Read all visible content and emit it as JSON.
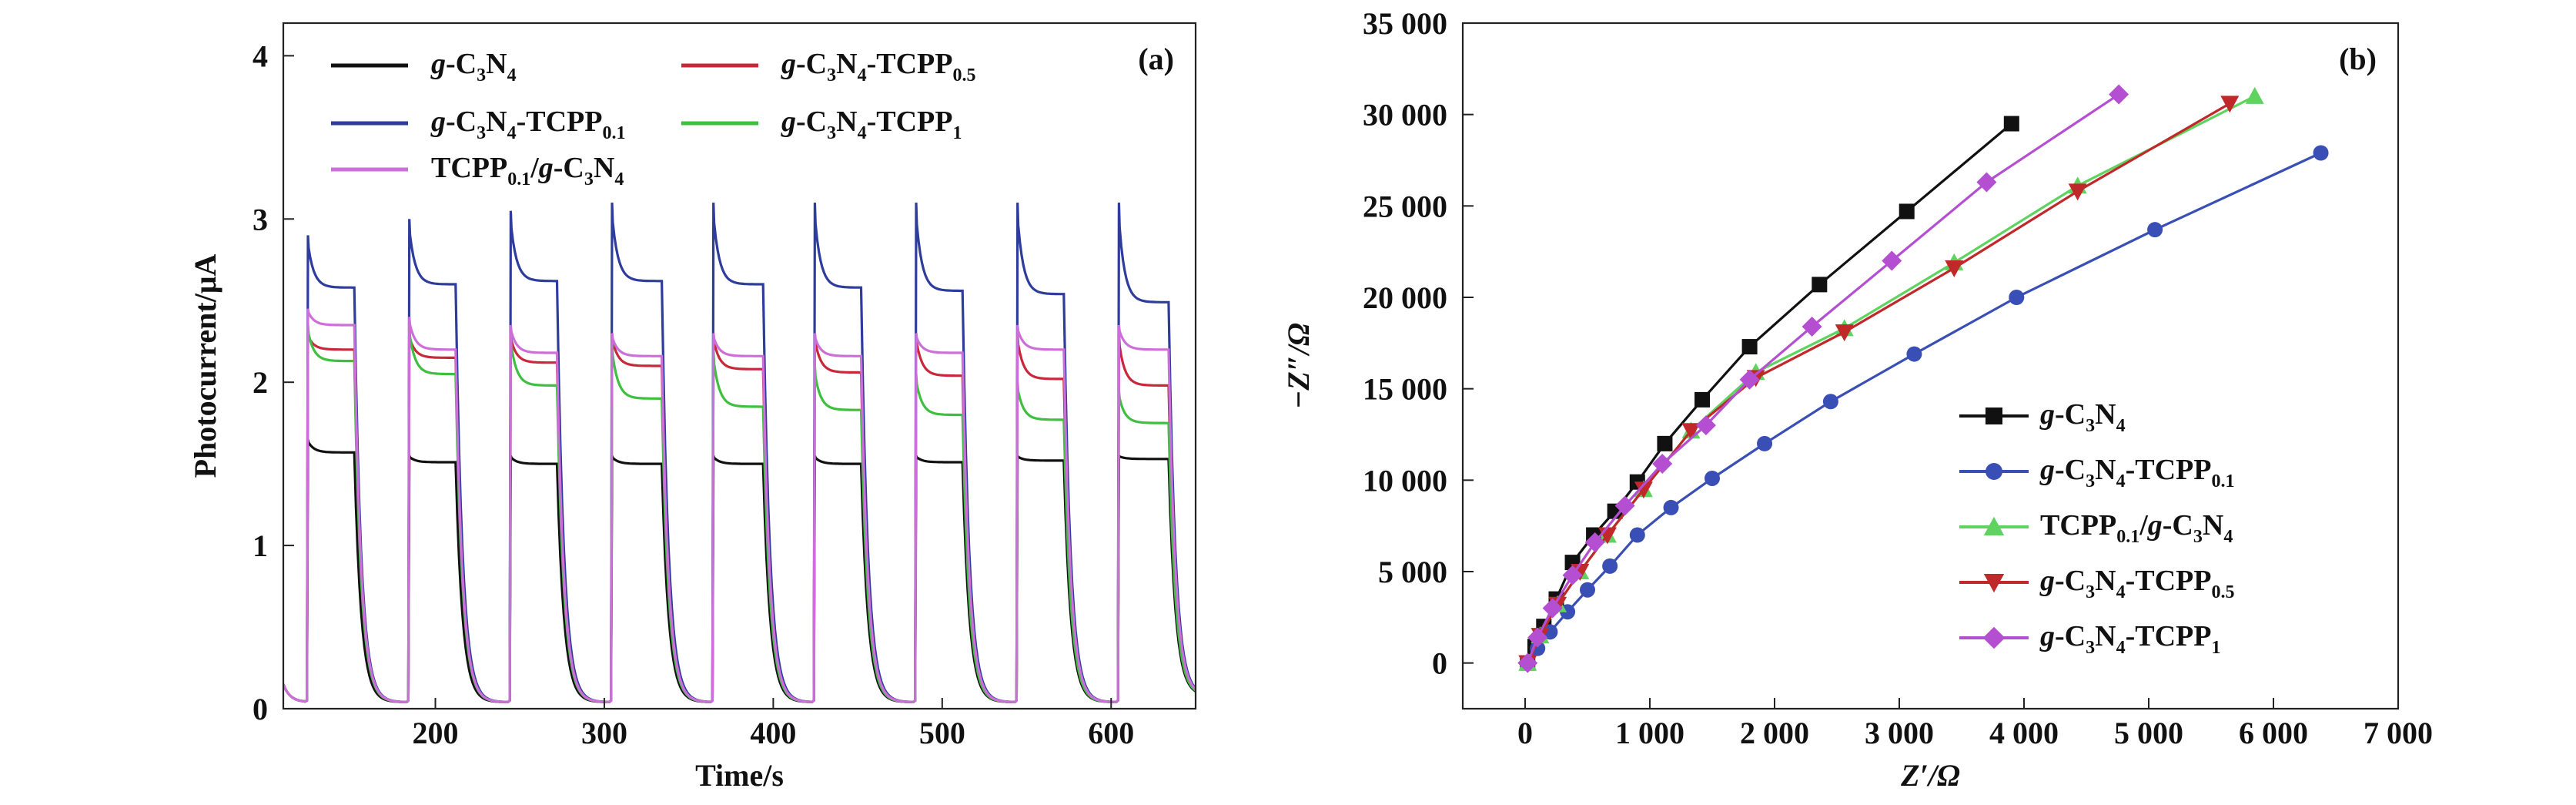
{
  "chart_data": [
    {
      "type": "line",
      "panel_label": "(a)",
      "xlabel": "Time/s",
      "ylabel": "Photocurrent/μA",
      "xlim": [
        110,
        650
      ],
      "ylim": [
        0,
        4.2
      ],
      "xticks": [
        200,
        300,
        400,
        500,
        600
      ],
      "yticks": [
        0,
        1,
        2,
        3,
        4
      ],
      "xtick_labels": [
        "200",
        "300",
        "400",
        "500",
        "600"
      ],
      "ytick_labels": [
        "0",
        "1",
        "2",
        "3",
        "4"
      ],
      "legend": "top-left, two columns",
      "light_on_times": [
        124,
        184,
        244,
        304,
        364,
        424,
        484,
        544,
        604
      ],
      "light_off_times": [
        152,
        212,
        272,
        334,
        394,
        452,
        512,
        572,
        634
      ],
      "series": [
        {
          "name": "g-C3N4",
          "label_parts": [
            [
              "g",
              "i"
            ],
            [
              "-C",
              ""
            ],
            [
              "3",
              "s"
            ],
            [
              "N",
              ""
            ],
            [
              "4",
              "s"
            ]
          ],
          "color": "#111111",
          "peak": [
            1.65,
            1.55,
            1.55,
            1.55,
            1.55,
            1.55,
            1.55,
            1.55,
            1.55
          ],
          "steady": [
            1.57,
            1.51,
            1.5,
            1.5,
            1.5,
            1.5,
            1.51,
            1.52,
            1.53
          ]
        },
        {
          "name": "g-C3N4-TCPP0.5",
          "label_parts": [
            [
              "g",
              "i"
            ],
            [
              "-C",
              ""
            ],
            [
              "3",
              "s"
            ],
            [
              "N",
              ""
            ],
            [
              "4",
              "s"
            ],
            [
              "-TCPP",
              ""
            ],
            [
              "0.5",
              "s"
            ]
          ],
          "color": "#c8283a",
          "peak": [
            2.3,
            2.3,
            2.3,
            2.3,
            2.3,
            2.3,
            2.3,
            2.3,
            2.3
          ],
          "steady": [
            2.2,
            2.15,
            2.12,
            2.1,
            2.08,
            2.06,
            2.04,
            2.02,
            1.98
          ]
        },
        {
          "name": "g-C3N4-TCPP0.1",
          "label_parts": [
            [
              "g",
              "i"
            ],
            [
              "-C",
              ""
            ],
            [
              "3",
              "s"
            ],
            [
              "N",
              ""
            ],
            [
              "4",
              "s"
            ],
            [
              "-TCPP",
              ""
            ],
            [
              "0.1",
              "s"
            ]
          ],
          "color": "#2e3d9b",
          "peak": [
            2.9,
            3.0,
            3.05,
            3.1,
            3.1,
            3.1,
            3.1,
            3.1,
            3.1
          ],
          "steady": [
            2.58,
            2.6,
            2.62,
            2.62,
            2.6,
            2.58,
            2.56,
            2.54,
            2.49
          ]
        },
        {
          "name": "g-C3N4-TCPP1",
          "label_parts": [
            [
              "g",
              "i"
            ],
            [
              "-C",
              ""
            ],
            [
              "3",
              "s"
            ],
            [
              "N",
              ""
            ],
            [
              "4",
              "s"
            ],
            [
              "-TCPP",
              ""
            ],
            [
              "1",
              "s"
            ]
          ],
          "color": "#3fbf3f",
          "peak": [
            2.35,
            2.35,
            2.3,
            2.25,
            2.2,
            2.1,
            2.05,
            2.0,
            1.95
          ],
          "steady": [
            2.13,
            2.05,
            1.98,
            1.9,
            1.85,
            1.83,
            1.8,
            1.77,
            1.75
          ]
        },
        {
          "name": "TCPP0.1/g-C3N4",
          "label_parts": [
            [
              "TCPP",
              ""
            ],
            [
              "0.1",
              "s"
            ],
            [
              "/",
              ""
            ],
            [
              "g",
              "i"
            ],
            [
              "-C",
              ""
            ],
            [
              "3",
              "s"
            ],
            [
              "N",
              ""
            ],
            [
              "4",
              "s"
            ]
          ],
          "color": "#cc6fd8",
          "peak": [
            2.45,
            2.4,
            2.35,
            2.3,
            2.3,
            2.3,
            2.3,
            2.35,
            2.35
          ],
          "steady": [
            2.35,
            2.2,
            2.18,
            2.16,
            2.16,
            2.16,
            2.18,
            2.2,
            2.2
          ]
        }
      ]
    },
    {
      "type": "line",
      "panel_label": "(b)",
      "xlabel": "Z′/Ω",
      "ylabel": "−Z″/Ω",
      "xlim": [
        -500,
        7000
      ],
      "ylim": [
        -2500,
        35000
      ],
      "xticks": [
        0,
        1000,
        2000,
        3000,
        4000,
        5000,
        6000,
        7000
      ],
      "yticks": [
        0,
        5000,
        10000,
        15000,
        20000,
        25000,
        30000,
        35000
      ],
      "xtick_labels": [
        "0",
        "1 000",
        "2 000",
        "3 000",
        "4 000",
        "5 000",
        "6 000",
        "7 000"
      ],
      "ytick_labels": [
        "0",
        "5 000",
        "10 000",
        "15 000",
        "20 000",
        "25 000",
        "30 000",
        "35 000"
      ],
      "legend": "lower-right",
      "series": [
        {
          "name": "g-C3N4",
          "label_parts": [
            [
              "g",
              "i"
            ],
            [
              "-C",
              ""
            ],
            [
              "3",
              "s"
            ],
            [
              "N",
              ""
            ],
            [
              "4",
              "s"
            ]
          ],
          "color": "#111111",
          "marker": "square",
          "x": [
            20,
            80,
            150,
            250,
            380,
            550,
            720,
            900,
            1120,
            1420,
            1800,
            2360,
            3060,
            3900
          ],
          "y": [
            0,
            900,
            2000,
            3500,
            5500,
            7000,
            8300,
            9900,
            12000,
            14400,
            17300,
            20700,
            24700,
            29500
          ]
        },
        {
          "name": "g-C3N4-TCPP0.1",
          "label_parts": [
            [
              "g",
              "i"
            ],
            [
              "-C",
              ""
            ],
            [
              "3",
              "s"
            ],
            [
              "N",
              ""
            ],
            [
              "4",
              "s"
            ],
            [
              "-TCPP",
              ""
            ],
            [
              "0.1",
              "s"
            ]
          ],
          "color": "#3a4fb5",
          "marker": "circle",
          "x": [
            20,
            100,
            200,
            340,
            500,
            680,
            900,
            1170,
            1500,
            1920,
            2450,
            3120,
            3940,
            5050,
            6380
          ],
          "y": [
            0,
            800,
            1700,
            2800,
            4000,
            5300,
            7000,
            8500,
            10100,
            12000,
            14300,
            16900,
            20000,
            23700,
            27900
          ]
        },
        {
          "name": "TCPP0.1/g-C3N4",
          "label_parts": [
            [
              "TCPP",
              ""
            ],
            [
              "0.1",
              "s"
            ],
            [
              "/",
              ""
            ],
            [
              "g",
              "i"
            ],
            [
              "-C",
              ""
            ],
            [
              "3",
              "s"
            ],
            [
              "N",
              ""
            ],
            [
              "4",
              "s"
            ]
          ],
          "color": "#5fd35f",
          "marker": "triangle-up",
          "x": [
            20,
            120,
            260,
            440,
            660,
            950,
            1330,
            1850,
            2560,
            3440,
            4430,
            5850
          ],
          "y": [
            0,
            1500,
            3200,
            5000,
            7000,
            9500,
            12700,
            15900,
            18300,
            21900,
            26100,
            31000
          ]
        },
        {
          "name": "g-C3N4-TCPP0.5",
          "label_parts": [
            [
              "g",
              "i"
            ],
            [
              "-C",
              ""
            ],
            [
              "3",
              "s"
            ],
            [
              "N",
              ""
            ],
            [
              "4",
              "s"
            ],
            [
              "-TCPP",
              ""
            ],
            [
              "0.5",
              "s"
            ]
          ],
          "color": "#c0282a",
          "marker": "triangle-down",
          "x": [
            20,
            120,
            260,
            440,
            660,
            950,
            1330,
            1850,
            2560,
            3440,
            4430,
            5650
          ],
          "y": [
            0,
            1500,
            3200,
            5000,
            7000,
            9500,
            12700,
            15600,
            18100,
            21600,
            25800,
            30600
          ]
        },
        {
          "name": "g-C3N4-TCPP1",
          "label_parts": [
            [
              "g",
              "i"
            ],
            [
              "-C",
              ""
            ],
            [
              "3",
              "s"
            ],
            [
              "N",
              ""
            ],
            [
              "4",
              "s"
            ],
            [
              "-TCPP",
              ""
            ],
            [
              "1",
              "s"
            ]
          ],
          "color": "#b44fd1",
          "marker": "diamond",
          "x": [
            20,
            100,
            220,
            380,
            560,
            800,
            1100,
            1450,
            1800,
            2300,
            2940,
            3700,
            4760
          ],
          "y": [
            0,
            1400,
            3000,
            4800,
            6600,
            8600,
            10900,
            13000,
            15500,
            18400,
            22000,
            26300,
            31100
          ]
        }
      ]
    }
  ]
}
